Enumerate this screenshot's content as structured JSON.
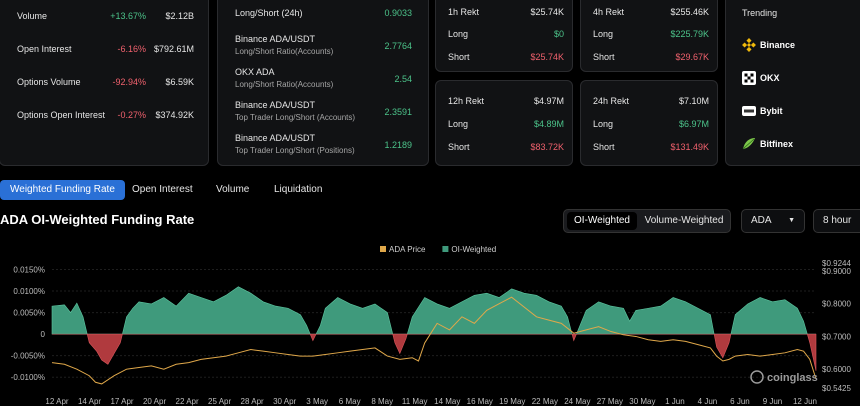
{
  "stats": [
    {
      "label": "Volume",
      "change": "+13.67%",
      "value": "$2.12B"
    },
    {
      "label": "Open Interest",
      "change": "-6.16%",
      "value": "$792.61M"
    },
    {
      "label": "Options Volume",
      "change": "-92.94%",
      "value": "$6.59K"
    },
    {
      "label": "Options Open Interest",
      "change": "-0.27%",
      "value": "$374.92K"
    }
  ],
  "ratios": [
    {
      "title": "Long/Short (24h)",
      "sub": "",
      "value": "0.9033"
    },
    {
      "title": "Binance ADA/USDT",
      "sub": "Long/Short Ratio(Accounts)",
      "value": "2.7764"
    },
    {
      "title": "OKX ADA",
      "sub": "Long/Short Ratio(Accounts)",
      "value": "2.54"
    },
    {
      "title": "Binance ADA/USDT",
      "sub": "Top Trader Long/Short (Accounts)",
      "value": "2.3591"
    },
    {
      "title": "Binance ADA/USDT",
      "sub": "Top Trader Long/Short (Positions)",
      "value": "1.2189"
    }
  ],
  "rekt": {
    "h1": {
      "title": "1h Rekt",
      "total": "$25.74K",
      "long_label": "Long",
      "long": "$0",
      "short_label": "Short",
      "short": "$25.74K"
    },
    "h4": {
      "title": "4h Rekt",
      "total": "$255.46K",
      "long_label": "Long",
      "long": "$225.79K",
      "short_label": "Short",
      "short": "$29.67K"
    },
    "h12": {
      "title": "12h Rekt",
      "total": "$4.97M",
      "long_label": "Long",
      "long": "$4.89M",
      "short_label": "Short",
      "short": "$83.72K"
    },
    "h24": {
      "title": "24h Rekt",
      "total": "$7.10M",
      "long_label": "Long",
      "long": "$6.97M",
      "short_label": "Short",
      "short": "$131.49K"
    }
  },
  "trending": {
    "title": "Trending",
    "items": [
      {
        "name": "Binance",
        "icon": "binance-icon",
        "color": "#f0b90b"
      },
      {
        "name": "OKX",
        "icon": "okx-icon",
        "color": "#ffffff"
      },
      {
        "name": "Bybit",
        "icon": "bybit-icon",
        "color": "#ffffff"
      },
      {
        "name": "Bitfinex",
        "icon": "bitfinex-icon",
        "color": "#7ec84b"
      }
    ]
  },
  "tabs": [
    "Weighted Funding Rate",
    "Open Interest",
    "Volume",
    "Liquidation"
  ],
  "active_tab": 0,
  "section_title": "ADA OI-Weighted Funding Rate",
  "toggle": {
    "left": "OI-Weighted",
    "right": "Volume-Weighted",
    "active": "left"
  },
  "symbol_select": {
    "value": "ADA",
    "icon": "chevron-down-icon"
  },
  "interval_select": {
    "value": "8 hour"
  },
  "watermark": "coinglass",
  "chart_data": {
    "type": "area",
    "legend": [
      {
        "name": "ADA Price",
        "color": "#e0a84a"
      },
      {
        "name": "OI-Weighted",
        "color": "#3f9a7c"
      }
    ],
    "legend_position": "top-center",
    "y_left_ticks": [
      "0.0150%",
      "0.0100%",
      "0.0050%",
      "0",
      "-0.0050%",
      "-0.0100%"
    ],
    "y_left_values": [
      0.015,
      0.01,
      0.005,
      0,
      -0.005,
      -0.01
    ],
    "y_right_ticks": [
      "$0.9244",
      "$0.9000",
      "$0.8000",
      "$0.7000",
      "$0.6000",
      "$0.5425"
    ],
    "y_right_values": [
      0.9244,
      0.9,
      0.8,
      0.7,
      0.6,
      0.5425
    ],
    "x_ticks": [
      "12 Apr",
      "14 Apr",
      "17 Apr",
      "20 Apr",
      "22 Apr",
      "25 Apr",
      "28 Apr",
      "30 Apr",
      "3 May",
      "6 May",
      "8 May",
      "11 May",
      "14 May",
      "16 May",
      "19 May",
      "22 May",
      "24 May",
      "27 May",
      "30 May",
      "1 Jun",
      "4 Jun",
      "6 Jun",
      "9 Jun",
      "12 Jun"
    ],
    "x_range_days": [
      0,
      61.5
    ],
    "funding": [
      [
        0,
        0.0065
      ],
      [
        1,
        0.0068
      ],
      [
        1.5,
        0.005
      ],
      [
        2,
        0.0072
      ],
      [
        2.5,
        0.004
      ],
      [
        3,
        -0.002
      ],
      [
        3.6,
        -0.004
      ],
      [
        4,
        -0.006
      ],
      [
        4.5,
        -0.007
      ],
      [
        5,
        -0.0045
      ],
      [
        5.5,
        -0.002
      ],
      [
        6,
        0.004
      ],
      [
        6.5,
        0.006
      ],
      [
        7,
        0.0075
      ],
      [
        8,
        0.007
      ],
      [
        9,
        0.0085
      ],
      [
        10,
        0.0065
      ],
      [
        11,
        0.0095
      ],
      [
        12,
        0.0085
      ],
      [
        13,
        0.0075
      ],
      [
        14,
        0.009
      ],
      [
        15,
        0.011
      ],
      [
        16,
        0.0095
      ],
      [
        17,
        0.0075
      ],
      [
        18,
        0.0065
      ],
      [
        19,
        0.006
      ],
      [
        20,
        0.0045
      ],
      [
        20.5,
        0.002
      ],
      [
        21,
        -0.0015
      ],
      [
        21.6,
        0.002
      ],
      [
        22,
        0.006
      ],
      [
        23,
        0.0085
      ],
      [
        24,
        0.007
      ],
      [
        25,
        0.006
      ],
      [
        26,
        0.007
      ],
      [
        27,
        0.005
      ],
      [
        27.6,
        -0.002
      ],
      [
        28,
        -0.0045
      ],
      [
        28.5,
        -0.001
      ],
      [
        29,
        0.004
      ],
      [
        30,
        0.0085
      ],
      [
        31,
        0.007
      ],
      [
        32,
        0.006
      ],
      [
        33,
        0.0075
      ],
      [
        34,
        0.009
      ],
      [
        35,
        0.0095
      ],
      [
        36,
        0.0085
      ],
      [
        37,
        0.0105
      ],
      [
        38,
        0.0095
      ],
      [
        39,
        0.009
      ],
      [
        40,
        0.0075
      ],
      [
        41,
        0.0065
      ],
      [
        41.5,
        0.004
      ],
      [
        42,
        -0.0015
      ],
      [
        42.5,
        0.002
      ],
      [
        43,
        0.0055
      ],
      [
        44,
        0.0075
      ],
      [
        45,
        0.0065
      ],
      [
        46,
        0.006
      ],
      [
        46.5,
        0.003
      ],
      [
        47,
        0.0055
      ],
      [
        48,
        0.006
      ],
      [
        49,
        0.0065
      ],
      [
        50,
        0.0085
      ],
      [
        51,
        0.0075
      ],
      [
        52,
        0.006
      ],
      [
        53,
        0.0045
      ],
      [
        53.5,
        -0.003
      ],
      [
        54,
        -0.0055
      ],
      [
        54.5,
        -0.002
      ],
      [
        55,
        0.0045
      ],
      [
        56,
        0.007
      ],
      [
        57,
        0.0085
      ],
      [
        58,
        0.0075
      ],
      [
        59,
        0.008
      ],
      [
        60,
        0.006
      ],
      [
        60.5,
        0.003
      ],
      [
        61,
        -0.002
      ],
      [
        61.5,
        -0.0085
      ]
    ],
    "price": [
      [
        0,
        0.62
      ],
      [
        1,
        0.615
      ],
      [
        2,
        0.6
      ],
      [
        3,
        0.58
      ],
      [
        3.5,
        0.56
      ],
      [
        4,
        0.555
      ],
      [
        5,
        0.58
      ],
      [
        6,
        0.6
      ],
      [
        7,
        0.605
      ],
      [
        8,
        0.61
      ],
      [
        9,
        0.6
      ],
      [
        10,
        0.615
      ],
      [
        11,
        0.62
      ],
      [
        12,
        0.63
      ],
      [
        13,
        0.635
      ],
      [
        14,
        0.64
      ],
      [
        15,
        0.65
      ],
      [
        16,
        0.66
      ],
      [
        17,
        0.655
      ],
      [
        18,
        0.65
      ],
      [
        19,
        0.645
      ],
      [
        20,
        0.64
      ],
      [
        21,
        0.64
      ],
      [
        22,
        0.645
      ],
      [
        23,
        0.65
      ],
      [
        24,
        0.655
      ],
      [
        25,
        0.66
      ],
      [
        26,
        0.665
      ],
      [
        27,
        0.64
      ],
      [
        28,
        0.63
      ],
      [
        29,
        0.635
      ],
      [
        29.5,
        0.625
      ],
      [
        30,
        0.68
      ],
      [
        30.5,
        0.71
      ],
      [
        31,
        0.74
      ],
      [
        32,
        0.72
      ],
      [
        33,
        0.76
      ],
      [
        34,
        0.74
      ],
      [
        35,
        0.78
      ],
      [
        36,
        0.8
      ],
      [
        37,
        0.82
      ],
      [
        38,
        0.79
      ],
      [
        39,
        0.76
      ],
      [
        40,
        0.75
      ],
      [
        41,
        0.74
      ],
      [
        42,
        0.71
      ],
      [
        43,
        0.72
      ],
      [
        44,
        0.73
      ],
      [
        45,
        0.715
      ],
      [
        46,
        0.705
      ],
      [
        47,
        0.7
      ],
      [
        48,
        0.69
      ],
      [
        49,
        0.685
      ],
      [
        50,
        0.69
      ],
      [
        51,
        0.685
      ],
      [
        52,
        0.675
      ],
      [
        53,
        0.665
      ],
      [
        53.5,
        0.64
      ],
      [
        54,
        0.625
      ],
      [
        54.5,
        0.63
      ],
      [
        55,
        0.64
      ],
      [
        56,
        0.645
      ],
      [
        57,
        0.64
      ],
      [
        58,
        0.645
      ],
      [
        59,
        0.65
      ],
      [
        60,
        0.66
      ],
      [
        60.5,
        0.655
      ],
      [
        61,
        0.63
      ],
      [
        61.5,
        0.57
      ]
    ],
    "y_left_range": [
      -0.0125,
      0.0165
    ],
    "y_right_range": [
      0.5425,
      0.9244
    ]
  }
}
